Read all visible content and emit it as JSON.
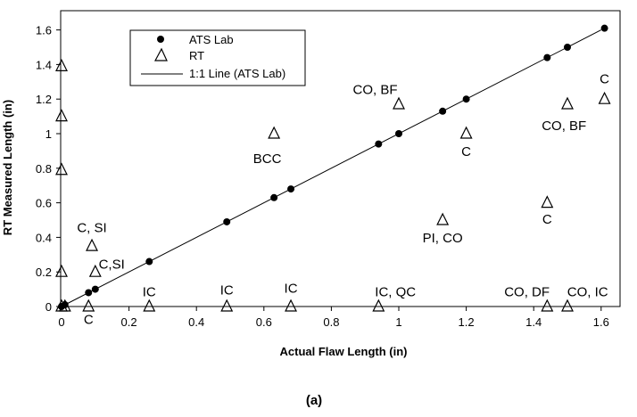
{
  "chart_data": {
    "type": "scatter",
    "xlabel": "Actual Flaw Length (in)",
    "ylabel": "RT Measured Length (in)",
    "xlim": [
      0,
      1.6
    ],
    "ylim": [
      0,
      1.6
    ],
    "xticks": [
      0,
      0.2,
      0.4,
      0.6,
      0.8,
      1,
      1.2,
      1.4,
      1.6
    ],
    "yticks": [
      0,
      0.2,
      0.4,
      0.6,
      0.8,
      1,
      1.2,
      1.4,
      1.6
    ],
    "xtick_labels": [
      "0",
      "0.2",
      "0.4",
      "0.6",
      "0.8",
      "1",
      "1.2",
      "1.4",
      "1.6"
    ],
    "ytick_labels": [
      "0",
      "0.2",
      "0.4",
      "0.6",
      "0.8",
      "1",
      "1.2",
      "1.4",
      "1.6"
    ],
    "grid": false,
    "legend_position": "top-left",
    "series": [
      {
        "name": "ATS Lab",
        "marker": "filled-circle",
        "color": "#000000",
        "x": [
          0.0,
          0.01,
          0.08,
          0.1,
          0.26,
          0.49,
          0.63,
          0.68,
          0.94,
          1.0,
          1.13,
          1.2,
          1.44,
          1.5,
          1.61
        ],
        "y": [
          0.0,
          0.01,
          0.08,
          0.1,
          0.26,
          0.49,
          0.63,
          0.68,
          0.94,
          1.0,
          1.13,
          1.2,
          1.44,
          1.5,
          1.61
        ]
      },
      {
        "name": "RT",
        "marker": "open-triangle",
        "color": "#000000",
        "x": [
          0,
          0,
          0,
          0,
          0,
          0.01,
          0.08,
          0.09,
          0.1,
          0.26,
          0.49,
          0.63,
          0.68,
          0.94,
          1.0,
          1.13,
          1.2,
          1.44,
          1.44,
          1.5,
          1.5,
          1.61
        ],
        "y": [
          1.39,
          1.1,
          0.79,
          0.2,
          0.0,
          0.0,
          0.0,
          0.35,
          0.2,
          0.0,
          0.0,
          1.0,
          0.0,
          0.0,
          1.17,
          0.5,
          1.0,
          0.6,
          0.0,
          1.17,
          0.0,
          1.2
        ]
      },
      {
        "name": "1:1 Line (ATS Lab)",
        "line": true,
        "color": "#000000",
        "x": [
          0,
          1.6
        ],
        "y": [
          0,
          1.6
        ]
      }
    ],
    "annotations": [
      {
        "text": "C, SI",
        "x": 0.09,
        "y": 0.43,
        "anchor": "middle"
      },
      {
        "text": "C,SI",
        "x": 0.11,
        "y": 0.22,
        "anchor": "start"
      },
      {
        "text": "C",
        "x": 0.08,
        "y": -0.1,
        "anchor": "middle"
      },
      {
        "text": "IC",
        "x": 0.26,
        "y": 0.06,
        "anchor": "middle"
      },
      {
        "text": "IC",
        "x": 0.49,
        "y": 0.07,
        "anchor": "middle"
      },
      {
        "text": "IC",
        "x": 0.68,
        "y": 0.08,
        "anchor": "middle"
      },
      {
        "text": "BCC",
        "x": 0.61,
        "y": 0.83,
        "anchor": "middle"
      },
      {
        "text": "CO, BF",
        "x": 0.93,
        "y": 1.23,
        "anchor": "middle"
      },
      {
        "text": "C",
        "x": 1.2,
        "y": 0.87,
        "anchor": "middle"
      },
      {
        "text": "PI, CO",
        "x": 1.13,
        "y": 0.37,
        "anchor": "middle"
      },
      {
        "text": "IC, QC",
        "x": 0.99,
        "y": 0.06,
        "anchor": "middle"
      },
      {
        "text": "C",
        "x": 1.44,
        "y": 0.48,
        "anchor": "middle"
      },
      {
        "text": "CO, DF",
        "x": 1.38,
        "y": 0.06,
        "anchor": "middle"
      },
      {
        "text": "CO, IC",
        "x": 1.56,
        "y": 0.06,
        "anchor": "middle"
      },
      {
        "text": "CO, BF",
        "x": 1.49,
        "y": 1.02,
        "anchor": "middle"
      },
      {
        "text": "C",
        "x": 1.61,
        "y": 1.29,
        "anchor": "middle"
      }
    ],
    "caption": "(a)"
  }
}
